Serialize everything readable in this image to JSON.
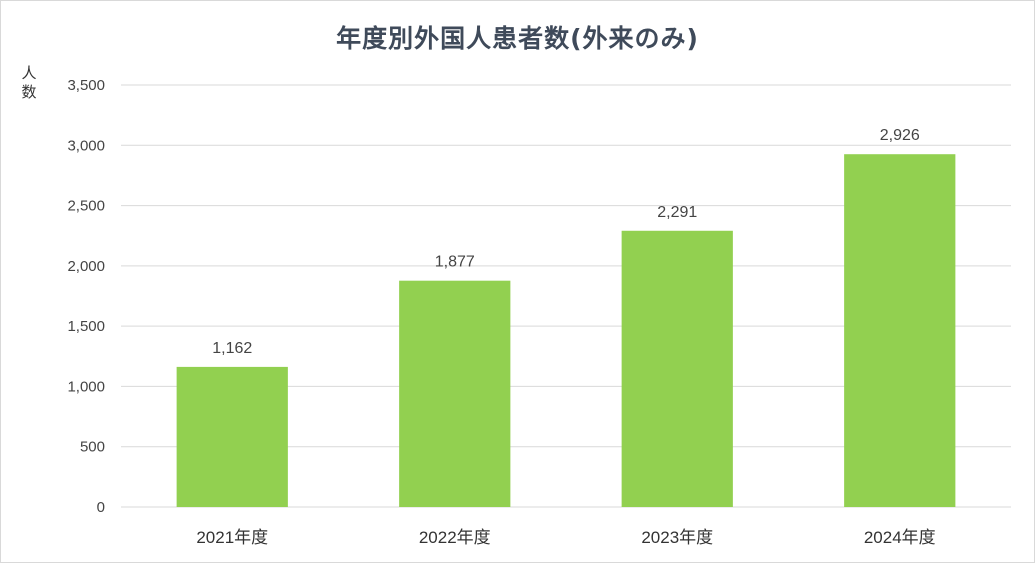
{
  "chart_data": {
    "type": "bar",
    "title": "年度別外国人患者数(外来のみ)",
    "ylabel": "人数",
    "xlabel": "",
    "categories": [
      "2021年度",
      "2022年度",
      "2023年度",
      "2024年度"
    ],
    "values": [
      1162,
      1877,
      2291,
      2926
    ],
    "data_labels": [
      "1,162",
      "1,877",
      "2,291",
      "2,926"
    ],
    "ylim": [
      0,
      3500
    ],
    "yticks": [
      0,
      500,
      1000,
      1500,
      2000,
      2500,
      3000,
      3500
    ],
    "ytick_labels": [
      "0",
      "500",
      "1,000",
      "1,500",
      "2,000",
      "2,500",
      "3,000",
      "3,500"
    ],
    "grid": true,
    "legend": "none",
    "bar_color": "#92d050",
    "grid_color": "#d9d9d9"
  }
}
